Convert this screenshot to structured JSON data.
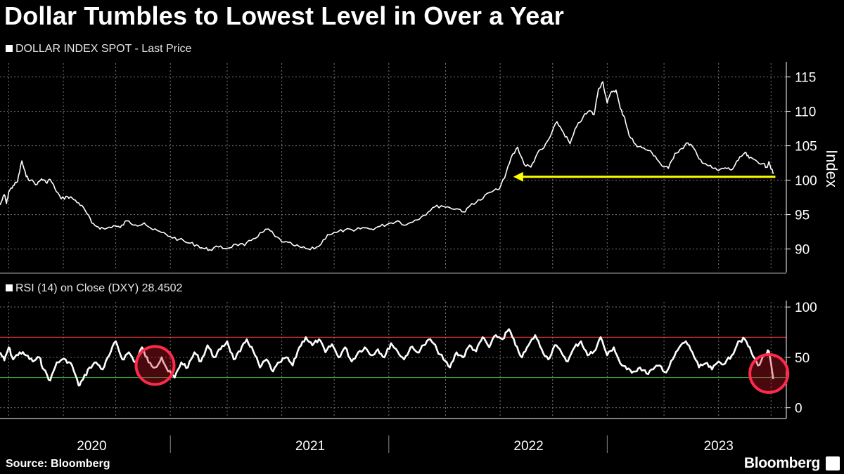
{
  "title": "Dollar Tumbles to Lowest Level in Over a Year",
  "source": "Source: Bloomberg",
  "brand": "Bloomberg",
  "chart_data": [
    {
      "type": "line",
      "name": "price",
      "legend": "DOLLAR INDEX SPOT - Last Price",
      "ylabel": "Index",
      "ylim": [
        87,
        117
      ],
      "yticks": [
        90,
        95,
        100,
        105,
        110,
        115
      ],
      "grid": true,
      "series": [
        {
          "name": "DOLLAR INDEX SPOT",
          "points": [
            [
              2020.0,
              96.4
            ],
            [
              2020.02,
              97.9
            ],
            [
              2020.03,
              96.6
            ],
            [
              2020.04,
              98.3
            ],
            [
              2020.06,
              99.2
            ],
            [
              2020.08,
              99.8
            ],
            [
              2020.1,
              102.8
            ],
            [
              2020.12,
              100.5
            ],
            [
              2020.14,
              100.0
            ],
            [
              2020.17,
              99.4
            ],
            [
              2020.19,
              100.2
            ],
            [
              2020.21,
              99.7
            ],
            [
              2020.23,
              100.1
            ],
            [
              2020.25,
              98.9
            ],
            [
              2020.28,
              97.3
            ],
            [
              2020.31,
              97.6
            ],
            [
              2020.33,
              97.4
            ],
            [
              2020.36,
              96.7
            ],
            [
              2020.39,
              95.6
            ],
            [
              2020.42,
              93.8
            ],
            [
              2020.45,
              93.2
            ],
            [
              2020.48,
              92.9
            ],
            [
              2020.52,
              93.4
            ],
            [
              2020.55,
              93.1
            ],
            [
              2020.58,
              94.1
            ],
            [
              2020.62,
              93.5
            ],
            [
              2020.66,
              93.8
            ],
            [
              2020.7,
              92.8
            ],
            [
              2020.74,
              92.4
            ],
            [
              2020.78,
              91.8
            ],
            [
              2020.82,
              91.4
            ],
            [
              2020.86,
              90.9
            ],
            [
              2020.9,
              90.6
            ],
            [
              2020.93,
              90.1
            ],
            [
              2020.96,
              89.9
            ],
            [
              2021.0,
              90.3
            ],
            [
              2021.04,
              90.1
            ],
            [
              2021.08,
              90.7
            ],
            [
              2021.12,
              90.5
            ],
            [
              2021.16,
              91.5
            ],
            [
              2021.2,
              92.4
            ],
            [
              2021.23,
              92.9
            ],
            [
              2021.26,
              91.8
            ],
            [
              2021.3,
              91.0
            ],
            [
              2021.34,
              90.6
            ],
            [
              2021.38,
              90.2
            ],
            [
              2021.42,
              89.9
            ],
            [
              2021.46,
              90.4
            ],
            [
              2021.5,
              92.1
            ],
            [
              2021.54,
              92.4
            ],
            [
              2021.58,
              92.8
            ],
            [
              2021.62,
              92.6
            ],
            [
              2021.66,
              93.1
            ],
            [
              2021.7,
              92.9
            ],
            [
              2021.74,
              93.3
            ],
            [
              2021.78,
              93.7
            ],
            [
              2021.82,
              94.1
            ],
            [
              2021.86,
              93.5
            ],
            [
              2021.9,
              94.2
            ],
            [
              2021.94,
              94.9
            ],
            [
              2021.98,
              96.0
            ],
            [
              2022.02,
              96.3
            ],
            [
              2022.06,
              96.0
            ],
            [
              2022.1,
              95.8
            ],
            [
              2022.13,
              95.4
            ],
            [
              2022.16,
              96.6
            ],
            [
              2022.2,
              97.1
            ],
            [
              2022.24,
              98.2
            ],
            [
              2022.28,
              98.6
            ],
            [
              2022.31,
              100.3
            ],
            [
              2022.34,
              103.3
            ],
            [
              2022.37,
              104.8
            ],
            [
              2022.4,
              102.3
            ],
            [
              2022.43,
              101.9
            ],
            [
              2022.46,
              103.9
            ],
            [
              2022.49,
              104.7
            ],
            [
              2022.52,
              106.4
            ],
            [
              2022.55,
              108.5
            ],
            [
              2022.58,
              106.9
            ],
            [
              2022.61,
              105.3
            ],
            [
              2022.64,
              107.8
            ],
            [
              2022.67,
              109.2
            ],
            [
              2022.7,
              110.1
            ],
            [
              2022.72,
              109.5
            ],
            [
              2022.74,
              113.3
            ],
            [
              2022.76,
              114.3
            ],
            [
              2022.78,
              111.2
            ],
            [
              2022.8,
              112.9
            ],
            [
              2022.82,
              113.1
            ],
            [
              2022.84,
              110.4
            ],
            [
              2022.86,
              109.1
            ],
            [
              2022.88,
              106.5
            ],
            [
              2022.91,
              105.2
            ],
            [
              2022.94,
              104.7
            ],
            [
              2022.97,
              104.3
            ],
            [
              2023.0,
              103.5
            ],
            [
              2023.03,
              102.1
            ],
            [
              2023.06,
              101.7
            ],
            [
              2023.09,
              103.9
            ],
            [
              2023.12,
              104.6
            ],
            [
              2023.15,
              105.4
            ],
            [
              2023.17,
              104.9
            ],
            [
              2023.2,
              103.1
            ],
            [
              2023.23,
              102.4
            ],
            [
              2023.26,
              101.8
            ],
            [
              2023.29,
              101.4
            ],
            [
              2023.32,
              101.8
            ],
            [
              2023.35,
              101.5
            ],
            [
              2023.38,
              102.9
            ],
            [
              2023.41,
              104.0
            ],
            [
              2023.43,
              103.2
            ],
            [
              2023.46,
              102.9
            ],
            [
              2023.49,
              102.4
            ],
            [
              2023.51,
              101.9
            ],
            [
              2023.52,
              102.7
            ],
            [
              2023.54,
              100.9
            ]
          ]
        }
      ],
      "annotation": {
        "type": "arrow",
        "label": "",
        "x_from": 2023.55,
        "x_to": 2022.35,
        "y": 100.5,
        "color": "#ffff00"
      }
    },
    {
      "type": "line",
      "name": "rsi",
      "legend": "RSI (14)  on Close (DXY) 28.4502",
      "ylim": [
        -10,
        105
      ],
      "yticks": [
        0,
        50,
        100
      ],
      "reference_lines": [
        {
          "value": 70,
          "color": "#ff3b3b"
        },
        {
          "value": 30,
          "color": "#3fbf3f"
        }
      ],
      "series": [
        {
          "name": "RSI (14)",
          "points": [
            [
              2020.0,
              55
            ],
            [
              2020.02,
              47
            ],
            [
              2020.04,
              60
            ],
            [
              2020.06,
              48
            ],
            [
              2020.09,
              55
            ],
            [
              2020.12,
              52
            ],
            [
              2020.15,
              46
            ],
            [
              2020.18,
              50
            ],
            [
              2020.2,
              38
            ],
            [
              2020.23,
              27
            ],
            [
              2020.26,
              45
            ],
            [
              2020.3,
              48
            ],
            [
              2020.33,
              42
            ],
            [
              2020.36,
              22
            ],
            [
              2020.38,
              28
            ],
            [
              2020.41,
              40
            ],
            [
              2020.44,
              45
            ],
            [
              2020.47,
              38
            ],
            [
              2020.5,
              52
            ],
            [
              2020.53,
              66
            ],
            [
              2020.56,
              48
            ],
            [
              2020.59,
              55
            ],
            [
              2020.62,
              45
            ],
            [
              2020.65,
              60
            ],
            [
              2020.68,
              45
            ],
            [
              2020.71,
              40
            ],
            [
              2020.74,
              50
            ],
            [
              2020.77,
              36
            ],
            [
              2020.8,
              30
            ],
            [
              2020.83,
              45
            ],
            [
              2020.86,
              40
            ],
            [
              2020.89,
              55
            ],
            [
              2020.92,
              46
            ],
            [
              2020.95,
              62
            ],
            [
              2020.98,
              50
            ],
            [
              2021.01,
              58
            ],
            [
              2021.04,
              66
            ],
            [
              2021.07,
              48
            ],
            [
              2021.1,
              56
            ],
            [
              2021.13,
              68
            ],
            [
              2021.16,
              56
            ],
            [
              2021.19,
              40
            ],
            [
              2021.22,
              48
            ],
            [
              2021.25,
              36
            ],
            [
              2021.28,
              45
            ],
            [
              2021.31,
              50
            ],
            [
              2021.34,
              42
            ],
            [
              2021.37,
              60
            ],
            [
              2021.4,
              70
            ],
            [
              2021.43,
              62
            ],
            [
              2021.46,
              68
            ],
            [
              2021.49,
              55
            ],
            [
              2021.52,
              63
            ],
            [
              2021.55,
              50
            ],
            [
              2021.58,
              60
            ],
            [
              2021.61,
              46
            ],
            [
              2021.64,
              55
            ],
            [
              2021.67,
              60
            ],
            [
              2021.7,
              52
            ],
            [
              2021.73,
              58
            ],
            [
              2021.76,
              50
            ],
            [
              2021.79,
              64
            ],
            [
              2021.82,
              56
            ],
            [
              2021.85,
              48
            ],
            [
              2021.88,
              60
            ],
            [
              2021.91,
              55
            ],
            [
              2021.94,
              62
            ],
            [
              2021.97,
              68
            ],
            [
              2022.0,
              58
            ],
            [
              2022.03,
              48
            ],
            [
              2022.06,
              40
            ],
            [
              2022.09,
              55
            ],
            [
              2022.12,
              50
            ],
            [
              2022.15,
              62
            ],
            [
              2022.18,
              56
            ],
            [
              2022.21,
              70
            ],
            [
              2022.24,
              60
            ],
            [
              2022.27,
              72
            ],
            [
              2022.3,
              68
            ],
            [
              2022.33,
              78
            ],
            [
              2022.36,
              62
            ],
            [
              2022.39,
              50
            ],
            [
              2022.42,
              62
            ],
            [
              2022.45,
              72
            ],
            [
              2022.48,
              58
            ],
            [
              2022.51,
              48
            ],
            [
              2022.54,
              62
            ],
            [
              2022.57,
              55
            ],
            [
              2022.6,
              46
            ],
            [
              2022.63,
              60
            ],
            [
              2022.66,
              66
            ],
            [
              2022.69,
              52
            ],
            [
              2022.72,
              56
            ],
            [
              2022.75,
              70
            ],
            [
              2022.78,
              52
            ],
            [
              2022.81,
              60
            ],
            [
              2022.84,
              44
            ],
            [
              2022.87,
              38
            ],
            [
              2022.9,
              36
            ],
            [
              2022.93,
              40
            ],
            [
              2022.96,
              34
            ],
            [
              2022.99,
              38
            ],
            [
              2023.02,
              42
            ],
            [
              2023.05,
              35
            ],
            [
              2023.08,
              48
            ],
            [
              2023.11,
              60
            ],
            [
              2023.14,
              66
            ],
            [
              2023.17,
              55
            ],
            [
              2023.2,
              40
            ],
            [
              2023.23,
              44
            ],
            [
              2023.26,
              38
            ],
            [
              2023.29,
              46
            ],
            [
              2023.32,
              44
            ],
            [
              2023.35,
              52
            ],
            [
              2023.38,
              66
            ],
            [
              2023.41,
              68
            ],
            [
              2023.44,
              55
            ],
            [
              2023.47,
              42
            ],
            [
              2023.5,
              52
            ],
            [
              2023.52,
              56
            ],
            [
              2023.54,
              28.45
            ]
          ]
        }
      ],
      "highlight_circles": [
        {
          "x": 2020.71,
          "y": 42
        },
        {
          "x": 2023.52,
          "y": 34
        }
      ]
    }
  ],
  "x_axis": {
    "labels": [
      {
        "text": "2020",
        "x": 2020.42
      },
      {
        "text": "2021",
        "x": 2021.42
      },
      {
        "text": "2022",
        "x": 2022.42
      },
      {
        "text": "2023",
        "x": 2023.29
      }
    ],
    "dividers": [
      2020.78,
      2021.78,
      2022.78
    ],
    "grid": [
      2020.04,
      2020.29,
      2020.53,
      2020.78,
      2021.04,
      2021.29,
      2021.53,
      2021.78,
      2022.04,
      2022.29,
      2022.53,
      2022.78,
      2023.04,
      2023.29,
      2023.53
    ],
    "xlim": [
      2020.0,
      2023.6
    ]
  }
}
